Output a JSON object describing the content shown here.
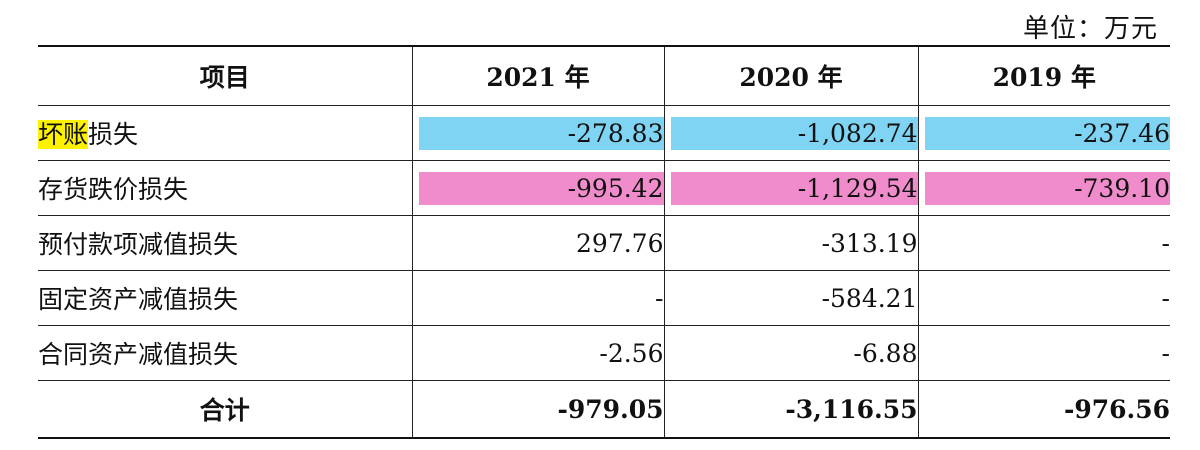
{
  "unit_label": "单位：万元",
  "headers": [
    "项目",
    "2021 年",
    "2020 年",
    "2019 年"
  ],
  "rows": [
    {
      "label_highlight": "坏账",
      "label_rest": "损失",
      "values": [
        "-278.83",
        "-1,082.74",
        "-237.46"
      ]
    },
    {
      "label": "存货跌价损失",
      "values": [
        "-995.42",
        "-1,129.54",
        "-739.10"
      ]
    },
    {
      "label": "预付款项减值损失",
      "values": [
        "297.76",
        "-313.19",
        "-"
      ]
    },
    {
      "label": "固定资产减值损失",
      "values": [
        "-",
        "-584.21",
        "-"
      ]
    },
    {
      "label": "合同资产减值损失",
      "values": [
        "-2.56",
        "-6.88",
        "-"
      ]
    }
  ],
  "total": {
    "label": "合计",
    "values": [
      "-979.05",
      "-3,116.55",
      "-976.56"
    ]
  },
  "colors": {
    "highlight_yellow": "#fff200",
    "highlight_blue": "#7fd4f3",
    "highlight_pink": "#f08ccc"
  }
}
